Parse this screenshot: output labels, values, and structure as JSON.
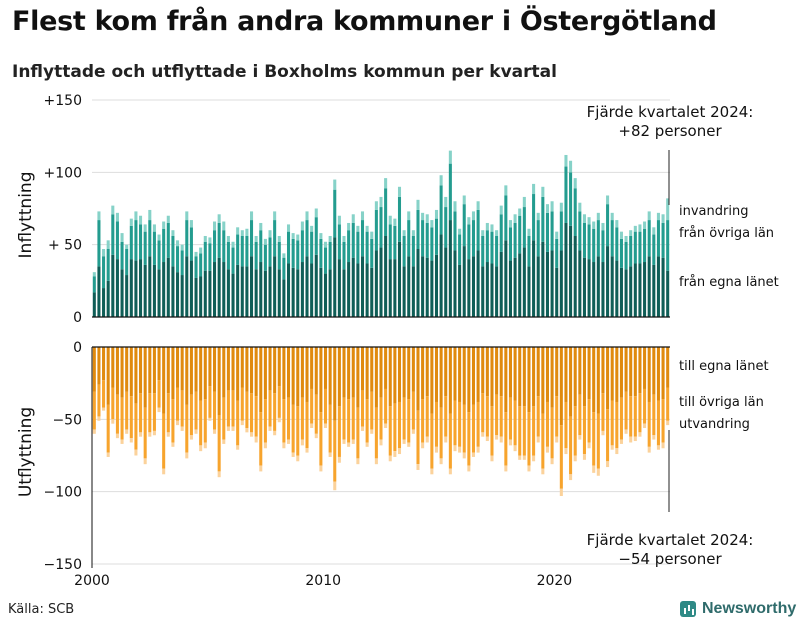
{
  "header": {
    "title": "Flest kom från andra kommuner i Östergötland",
    "subtitle": "Inflyttade och utflyttade i Boxholms kommun per kvartal"
  },
  "footer": {
    "source": "Källa: SCB",
    "brand": "Newsworthy"
  },
  "colors": {
    "in_egna": "#0f5e57",
    "in_ovriga": "#239c8f",
    "in_invandring": "#86d2c8",
    "out_egna": "#e08a0e",
    "out_ovriga": "#f7a42d",
    "out_utvandring": "#fbd29b",
    "grid": "#dddddd",
    "axis": "#111111"
  },
  "chart_data": {
    "type": "bar",
    "stacked": true,
    "x_label_ticks": [
      "2000",
      "2010",
      "2020"
    ],
    "x_tick_values": [
      2000,
      2010,
      2020
    ],
    "x_range": [
      2000,
      2025
    ],
    "quarters_start": "2000 Q1",
    "quarters_end": "2024 Q4",
    "panels": [
      {
        "name": "Inflyttning",
        "ylabel": "Inflyttning",
        "ylim": [
          0,
          150
        ],
        "ticks": [
          0,
          50,
          100,
          150
        ],
        "tick_labels": [
          "0",
          "+ 50",
          "+100",
          "+150"
        ],
        "series_labels": [
          "från egna länet",
          "från övriga län",
          "invandring"
        ]
      },
      {
        "name": "Utflyttning",
        "ylabel": "Utflyttning",
        "ylim": [
          -150,
          0
        ],
        "ticks": [
          0,
          -50,
          -100,
          -150
        ],
        "tick_labels": [
          "0",
          "−50",
          "−100",
          "−150"
        ],
        "series_labels": [
          "till egna länet",
          "till övriga län",
          "utvandring"
        ]
      }
    ],
    "annotation_in": {
      "line1": "Fjärde kvartalet 2024:",
      "line2": "+82 personer"
    },
    "annotation_out": {
      "line1": "Fjärde kvartalet 2024:",
      "line2": "−54 personer"
    },
    "inflow_totals": [
      31,
      73,
      47,
      53,
      77,
      72,
      58,
      50,
      68,
      73,
      70,
      64,
      74,
      64,
      57,
      66,
      70,
      60,
      53,
      50,
      73,
      67,
      45,
      48,
      56,
      55,
      66,
      71,
      66,
      56,
      52,
      62,
      60,
      61,
      73,
      56,
      65,
      54,
      60,
      73,
      56,
      44,
      64,
      58,
      57,
      66,
      73,
      63,
      75,
      58,
      52,
      56,
      95,
      70,
      56,
      65,
      71,
      63,
      73,
      63,
      59,
      80,
      83,
      96,
      70,
      68,
      90,
      60,
      73,
      60,
      81,
      72,
      71,
      67,
      74,
      98,
      83,
      115,
      80,
      61,
      84,
      69,
      73,
      80,
      60,
      65,
      64,
      60,
      77,
      91,
      67,
      71,
      75,
      83,
      61,
      92,
      72,
      90,
      78,
      80,
      59,
      79,
      112,
      108,
      96,
      79,
      71,
      69,
      66,
      72,
      65,
      84,
      72,
      67,
      59,
      56,
      60,
      63,
      64,
      66,
      73,
      62,
      72,
      71,
      82
    ],
    "inflow_egna": [
      17,
      35,
      20,
      25,
      43,
      40,
      33,
      29,
      40,
      39,
      40,
      36,
      42,
      36,
      33,
      38,
      41,
      35,
      31,
      29,
      42,
      39,
      27,
      28,
      32,
      32,
      38,
      41,
      38,
      33,
      30,
      36,
      35,
      35,
      42,
      33,
      38,
      32,
      35,
      42,
      33,
      26,
      37,
      34,
      33,
      38,
      42,
      37,
      43,
      34,
      30,
      33,
      55,
      40,
      33,
      38,
      41,
      37,
      42,
      37,
      34,
      46,
      48,
      56,
      40,
      40,
      52,
      35,
      42,
      35,
      47,
      42,
      41,
      39,
      43,
      57,
      48,
      67,
      46,
      36,
      49,
      40,
      42,
      46,
      35,
      38,
      37,
      35,
      45,
      53,
      39,
      41,
      44,
      48,
      35,
      53,
      42,
      52,
      45,
      46,
      34,
      46,
      65,
      63,
      56,
      46,
      41,
      40,
      38,
      42,
      38,
      49,
      42,
      39,
      34,
      33,
      35,
      37,
      37,
      38,
      42,
      36,
      42,
      41,
      32
    ],
    "inflow_ovriga": [
      11,
      32,
      22,
      22,
      28,
      26,
      19,
      18,
      23,
      28,
      24,
      23,
      25,
      23,
      20,
      23,
      24,
      21,
      18,
      17,
      25,
      23,
      15,
      16,
      20,
      19,
      22,
      24,
      22,
      19,
      18,
      21,
      21,
      21,
      25,
      19,
      22,
      18,
      20,
      25,
      19,
      15,
      22,
      20,
      20,
      22,
      25,
      22,
      26,
      20,
      18,
      19,
      33,
      24,
      19,
      22,
      24,
      22,
      25,
      22,
      20,
      28,
      28,
      33,
      24,
      23,
      31,
      21,
      25,
      21,
      27,
      25,
      24,
      23,
      25,
      34,
      28,
      39,
      27,
      21,
      29,
      24,
      25,
      28,
      21,
      22,
      22,
      21,
      26,
      31,
      23,
      24,
      26,
      28,
      21,
      32,
      25,
      31,
      27,
      27,
      20,
      27,
      39,
      37,
      33,
      27,
      24,
      24,
      23,
      25,
      22,
      29,
      25,
      23,
      20,
      19,
      21,
      22,
      22,
      23,
      25,
      21,
      25,
      24,
      35
    ],
    "outflow_totals": [
      60,
      51,
      44,
      76,
      53,
      63,
      67,
      60,
      66,
      75,
      62,
      81,
      62,
      61,
      45,
      88,
      62,
      69,
      54,
      58,
      77,
      64,
      60,
      72,
      70,
      51,
      60,
      90,
      67,
      58,
      58,
      71,
      54,
      59,
      62,
      66,
      86,
      70,
      58,
      61,
      52,
      70,
      67,
      76,
      79,
      68,
      73,
      56,
      63,
      86,
      56,
      76,
      99,
      80,
      67,
      69,
      67,
      81,
      58,
      69,
      60,
      81,
      68,
      56,
      79,
      76,
      74,
      67,
      69,
      60,
      85,
      70,
      66,
      88,
      73,
      81,
      66,
      88,
      72,
      73,
      77,
      86,
      76,
      73,
      62,
      65,
      79,
      64,
      66,
      86,
      68,
      72,
      78,
      78,
      86,
      79,
      66,
      88,
      73,
      81,
      66,
      103,
      74,
      92,
      79,
      64,
      78,
      70,
      87,
      89,
      61,
      83,
      71,
      74,
      67,
      60,
      66,
      65,
      62,
      56,
      73,
      64,
      71,
      70,
      54
    ],
    "outflow_egna": [
      31,
      26,
      23,
      40,
      28,
      33,
      35,
      31,
      34,
      39,
      32,
      42,
      32,
      32,
      23,
      46,
      32,
      36,
      28,
      30,
      40,
      33,
      31,
      37,
      36,
      27,
      31,
      47,
      35,
      30,
      30,
      37,
      28,
      31,
      32,
      34,
      45,
      36,
      30,
      32,
      27,
      36,
      35,
      40,
      41,
      35,
      38,
      29,
      33,
      45,
      29,
      40,
      51,
      41,
      35,
      36,
      35,
      42,
      30,
      36,
      31,
      42,
      35,
      29,
      41,
      39,
      38,
      35,
      36,
      31,
      44,
      36,
      34,
      46,
      38,
      42,
      34,
      46,
      37,
      38,
      40,
      45,
      40,
      38,
      32,
      34,
      41,
      33,
      34,
      45,
      35,
      37,
      41,
      41,
      45,
      41,
      34,
      46,
      38,
      42,
      34,
      54,
      38,
      48,
      41,
      33,
      41,
      36,
      45,
      46,
      32,
      43,
      37,
      38,
      35,
      31,
      34,
      34,
      32,
      29,
      38,
      33,
      37,
      36,
      28
    ],
    "outflow_ovriga": [
      26,
      22,
      19,
      33,
      22,
      27,
      29,
      26,
      29,
      32,
      27,
      35,
      27,
      26,
      19,
      38,
      27,
      30,
      23,
      25,
      33,
      28,
      26,
      31,
      30,
      22,
      26,
      39,
      29,
      25,
      25,
      31,
      23,
      25,
      27,
      28,
      37,
      30,
      25,
      26,
      22,
      30,
      29,
      33,
      34,
      29,
      32,
      24,
      27,
      37,
      24,
      33,
      42,
      35,
      29,
      30,
      29,
      35,
      25,
      30,
      26,
      35,
      29,
      24,
      34,
      33,
      32,
      29,
      30,
      26,
      37,
      30,
      28,
      38,
      31,
      35,
      28,
      38,
      31,
      31,
      33,
      37,
      33,
      31,
      27,
      28,
      34,
      28,
      28,
      37,
      29,
      31,
      34,
      34,
      37,
      34,
      28,
      38,
      31,
      35,
      28,
      44,
      32,
      40,
      34,
      28,
      33,
      30,
      37,
      38,
      26,
      36,
      31,
      32,
      29,
      26,
      28,
      28,
      27,
      24,
      31,
      28,
      31,
      30,
      23
    ]
  }
}
